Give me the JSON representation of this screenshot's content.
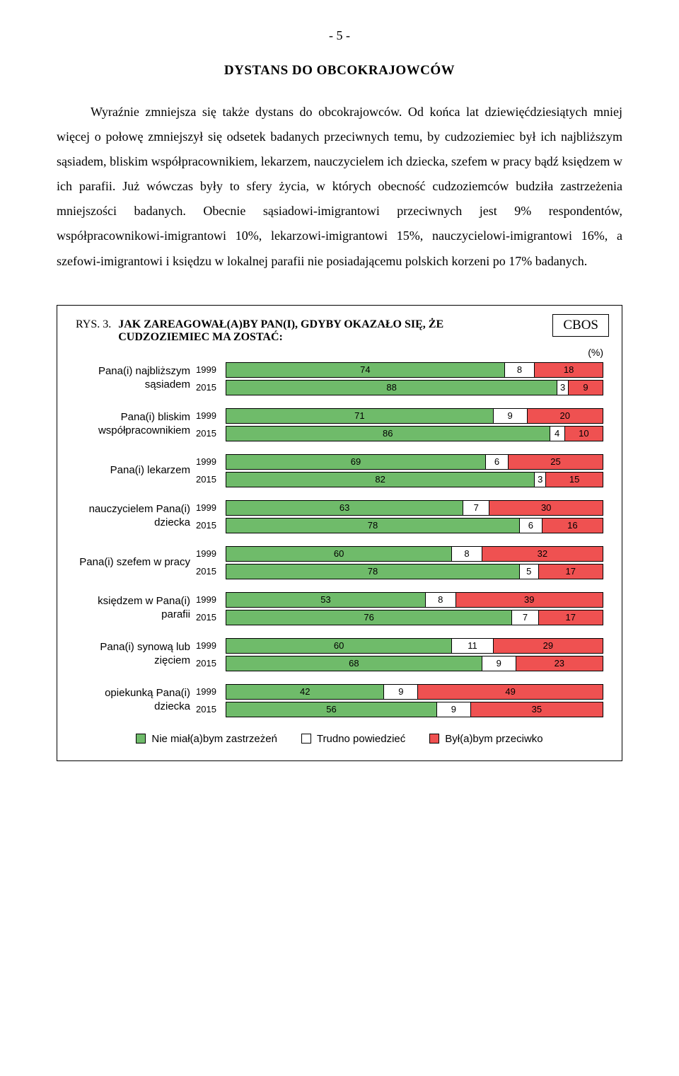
{
  "page_number": "- 5 -",
  "section_title": "DYSTANS DO OBCOKRAJOWCÓW",
  "body_text": "Wyraźnie zmniejsza się także dystans do obcokrajowców. Od końca lat dziewięćdziesiątych mniej więcej o połowę zmniejszył się odsetek badanych przeciwnych temu, by cudzoziemiec był ich najbliższym sąsiadem, bliskim współpracownikiem, lekarzem, nauczycielem ich dziecka, szefem w pracy bądź księdzem w ich parafii. Już wówczas były to sfery życia, w których obecność cudzoziemców budziła zastrzeżenia mniejszości badanych. Obecnie sąsiadowi-imigrantowi przeciwnych jest 9% respondentów, współpracownikowi-imigrantowi 10%, lekarzowi-imigrantowi 15%, nauczycielowi-imigrantowi 16%, a szefowi-imigrantowi i księdzu w lokalnej parafii nie posiadającemu polskich korzeni po 17% badanych.",
  "chart": {
    "badge": "CBOS",
    "rys_label": "RYS. 3.",
    "title": "JAK ZAREAGOWAŁ(A)BY PAN(I), GDYBY OKAZAŁO SIĘ, ŻE CUDZOZIEMIEC MA ZOSTAĆ:",
    "pct_label": "(%)",
    "colors": {
      "green": "#6fbb6a",
      "white": "#ffffff",
      "red": "#ef5151",
      "text_on_color": "#000000"
    },
    "legend": [
      {
        "label": "Nie miał(a)bym zastrzeżeń",
        "color": "#6fbb6a"
      },
      {
        "label": "Trudno powiedzieć",
        "color": "#ffffff"
      },
      {
        "label": "Był(a)bym przeciwko",
        "color": "#ef5151"
      }
    ],
    "groups": [
      {
        "label": "Pana(i) najbliższym sąsiadem",
        "rows": [
          {
            "year": "1999",
            "segments": [
              74,
              8,
              18
            ]
          },
          {
            "year": "2015",
            "segments": [
              88,
              3,
              9
            ]
          }
        ]
      },
      {
        "label": "Pana(i) bliskim współpracownikiem",
        "rows": [
          {
            "year": "1999",
            "segments": [
              71,
              9,
              20
            ]
          },
          {
            "year": "2015",
            "segments": [
              86,
              4,
              10
            ]
          }
        ]
      },
      {
        "label": "Pana(i) lekarzem",
        "rows": [
          {
            "year": "1999",
            "segments": [
              69,
              6,
              25
            ]
          },
          {
            "year": "2015",
            "segments": [
              82,
              3,
              15
            ]
          }
        ]
      },
      {
        "label": "nauczycielem Pana(i) dziecka",
        "rows": [
          {
            "year": "1999",
            "segments": [
              63,
              7,
              30
            ]
          },
          {
            "year": "2015",
            "segments": [
              78,
              6,
              16
            ]
          }
        ]
      },
      {
        "label": "Pana(i) szefem w pracy",
        "rows": [
          {
            "year": "1999",
            "segments": [
              60,
              8,
              32
            ]
          },
          {
            "year": "2015",
            "segments": [
              78,
              5,
              17
            ]
          }
        ]
      },
      {
        "label": "księdzem w Pana(i) parafii",
        "rows": [
          {
            "year": "1999",
            "segments": [
              53,
              8,
              39
            ]
          },
          {
            "year": "2015",
            "segments": [
              76,
              7,
              17
            ]
          }
        ]
      },
      {
        "label": "Pana(i) synową lub zięciem",
        "rows": [
          {
            "year": "1999",
            "segments": [
              60,
              11,
              29
            ]
          },
          {
            "year": "2015",
            "segments": [
              68,
              9,
              23
            ]
          }
        ]
      },
      {
        "label": "opiekunką Pana(i) dziecka",
        "rows": [
          {
            "year": "1999",
            "segments": [
              42,
              9,
              49
            ]
          },
          {
            "year": "2015",
            "segments": [
              56,
              9,
              35
            ]
          }
        ]
      }
    ]
  }
}
